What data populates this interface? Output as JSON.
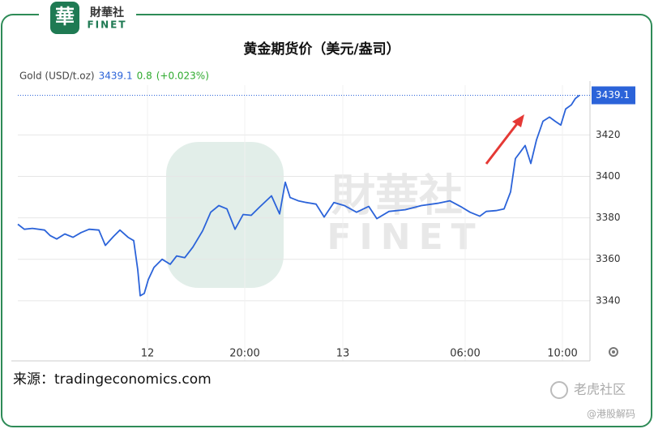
{
  "chart_data": {
    "type": "line",
    "title": "黄金期货价（美元/盎司）",
    "series": [
      {
        "name": "Gold (USD/t.oz)",
        "color": "#2b63d9",
        "values": [
          3376.9,
          3374.5,
          3374.9,
          3374.1,
          3371.4,
          3369.8,
          3372.2,
          3370.6,
          3372.9,
          3374.5,
          3374.1,
          3366.7,
          3371.0,
          3374.1,
          3370.6,
          3369.0,
          3354.9,
          3342.4,
          3343.5,
          3350.2,
          3356.1,
          3360.0,
          3357.6,
          3361.6,
          3360.8,
          3365.9,
          3373.7,
          3382.7,
          3385.9,
          3384.3,
          3374.5,
          3381.6,
          3381.2,
          3385.1,
          3390.6,
          3381.9,
          3397.2,
          3389.8,
          3388.2,
          3387.4,
          3386.6,
          3380.4,
          3387.4,
          3385.9,
          3382.7,
          3385.5,
          3379.6,
          3383.1,
          3383.9,
          3385.9,
          3387.0,
          3388.2,
          3385.1,
          3382.7,
          3380.8,
          3383.1,
          3383.5,
          3384.3,
          3392.5,
          3408.6,
          3411.7,
          3414.9,
          3406.2,
          3417.6,
          3426.6,
          3428.6,
          3426.6,
          3424.7,
          3432.5,
          3434.5,
          3437.6,
          3439.1
        ]
      }
    ],
    "x": [
      0,
      8,
      18,
      33,
      40,
      48,
      58,
      68,
      78,
      88,
      100,
      108,
      118,
      126,
      136,
      143,
      148,
      151,
      156,
      161,
      168,
      178,
      188,
      196,
      206,
      216,
      228,
      238,
      248,
      258,
      268,
      278,
      288,
      298,
      313,
      323,
      330,
      336,
      346,
      356,
      368,
      378,
      390,
      403,
      418,
      433,
      443,
      458,
      478,
      498,
      518,
      533,
      548,
      558,
      570,
      578,
      590,
      600,
      608,
      614,
      620,
      626,
      633,
      640,
      648,
      656,
      663,
      670,
      676,
      683,
      688,
      693
    ],
    "xlim": [
      0,
      706
    ],
    "xticks": [
      {
        "value": 160,
        "label": "12"
      },
      {
        "value": 280,
        "label": "20:00"
      },
      {
        "value": 401,
        "label": "13"
      },
      {
        "value": 552,
        "label": "06:00"
      },
      {
        "value": 672,
        "label": "10:00"
      }
    ],
    "ylim": [
      3311,
      3444
    ],
    "yticks": [
      3340,
      3360,
      3380,
      3400,
      3420
    ],
    "last_price": 3439.1,
    "change": "0.8",
    "change_pct": "(+0.023%)",
    "grid": true,
    "source": "来源：tradingeconomics.com",
    "logo": {
      "name": "財華社",
      "sub": "FINET"
    },
    "watermark": {
      "name": "財華社",
      "sub": "FINET"
    },
    "footer": {
      "brand": "老虎社区",
      "handle": "@港股解码"
    }
  }
}
